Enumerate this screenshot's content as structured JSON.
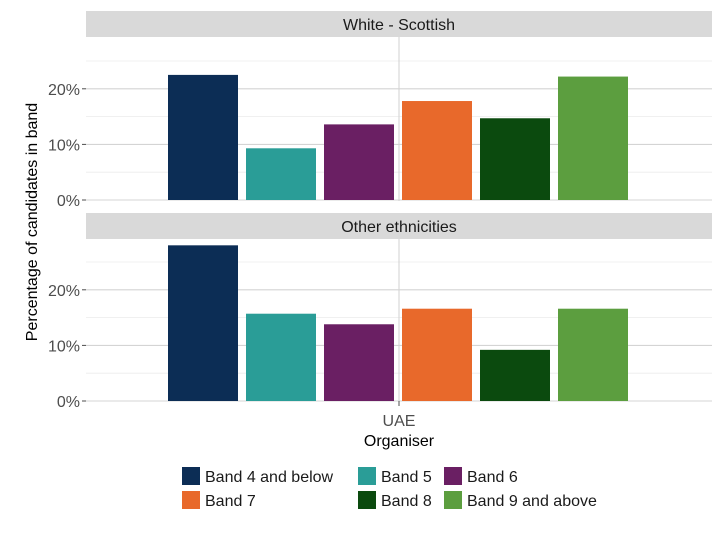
{
  "chart_data": {
    "type": "bar",
    "ylabel": "Percentage of candidates in band",
    "xlabel": "Organiser",
    "x_category": "UAE",
    "y_ticks": [
      "0%",
      "10%",
      "20%"
    ],
    "ylim": [
      0,
      30
    ],
    "grid": true,
    "legend_position": "bottom",
    "series": [
      {
        "name": "Band 4 and below",
        "color": "#0c2d55"
      },
      {
        "name": "Band 5",
        "color": "#2a9d97"
      },
      {
        "name": "Band 6",
        "color": "#6a1f63"
      },
      {
        "name": "Band 7",
        "color": "#e8692b"
      },
      {
        "name": "Band 8",
        "color": "#0b4a0e"
      },
      {
        "name": "Band 9 and above",
        "color": "#5c9e3f"
      }
    ],
    "panels": [
      {
        "title": "White - Scottish",
        "values": [
          22.5,
          9.3,
          13.6,
          17.8,
          14.7,
          22.2
        ]
      },
      {
        "title": "Other ethnicities",
        "values": [
          28.0,
          15.7,
          13.8,
          16.6,
          9.2,
          16.6
        ]
      }
    ]
  }
}
